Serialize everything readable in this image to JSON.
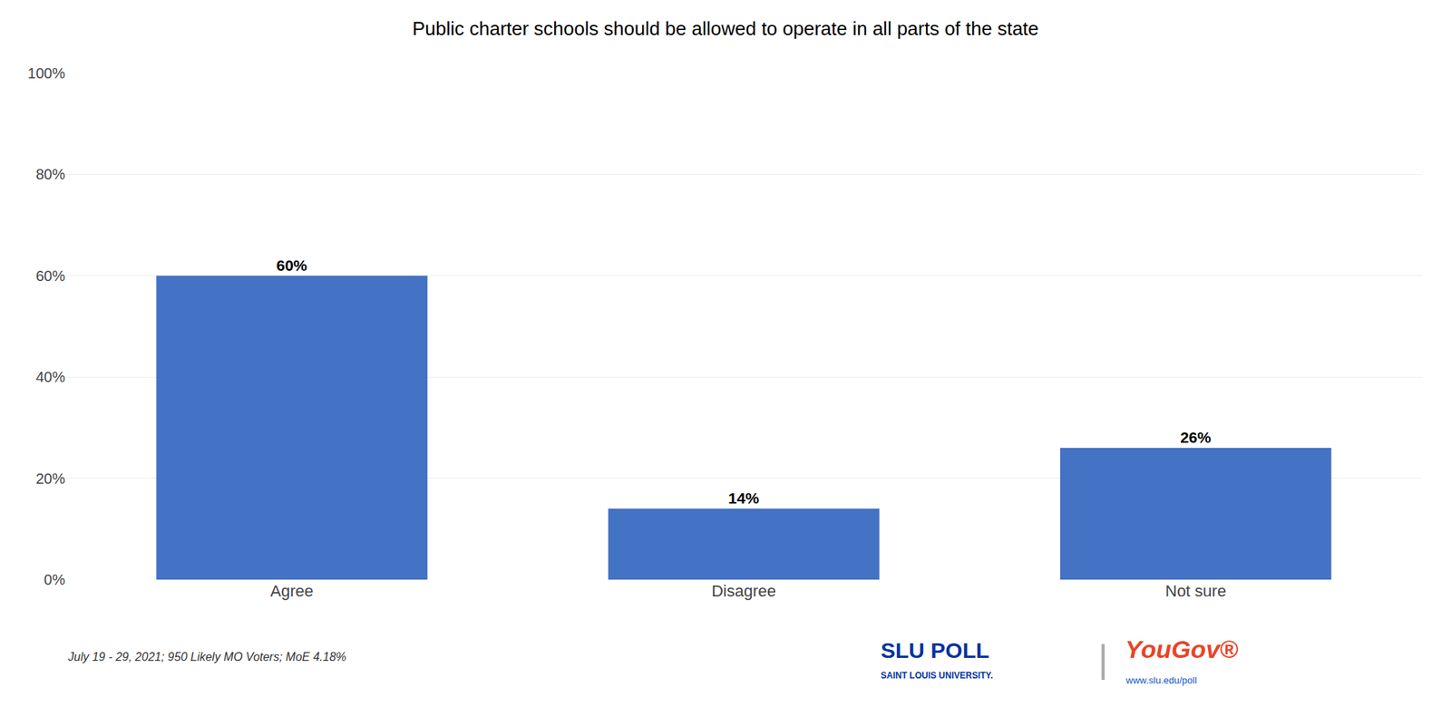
{
  "chart_data": {
    "type": "bar",
    "title": "Public charter schools should be allowed to operate in all parts of the state",
    "categories": [
      "Agree",
      "Disagree",
      "Not sure"
    ],
    "values": [
      60,
      14,
      26
    ],
    "value_labels": [
      "60%",
      "14%",
      "26%"
    ],
    "data_labels": true,
    "color": "#4472C4",
    "ylim": [
      0,
      100
    ],
    "yticks": [
      {
        "value": 0,
        "label": "0%"
      },
      {
        "value": 20,
        "label": "20%"
      },
      {
        "value": 40,
        "label": "40%"
      },
      {
        "value": 60,
        "label": "60%"
      },
      {
        "value": 80,
        "label": "80%"
      },
      {
        "value": 100,
        "label": "100%"
      }
    ],
    "grid": true,
    "annotations": [
      {
        "text": "July 19 - 29, 2021; 950 Likely MO Voters; MoE 4.18%",
        "color": "#333333"
      },
      {
        "text": "SLU POLL",
        "color": "#0033A0"
      },
      {
        "text": "SAINT LOUIS UNIVERSITY.",
        "color": "#0033A0"
      },
      {
        "text": "|",
        "color": "#AAAAAA"
      },
      {
        "text": "YouGov®",
        "color": "#E84526"
      },
      {
        "text": "www.slu.edu/poll",
        "color": "#1155CC"
      }
    ]
  }
}
